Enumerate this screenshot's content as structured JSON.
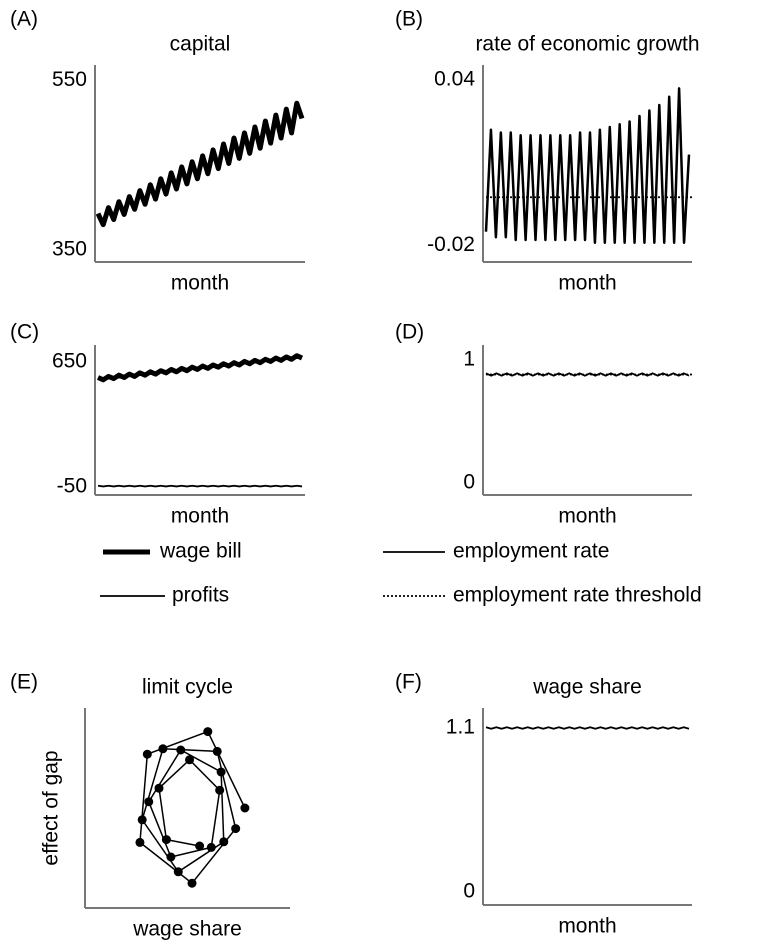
{
  "chart_data": [
    {
      "type": "line",
      "panel": "(A)",
      "title": "capital",
      "xlabel": "month",
      "ylim": [
        336,
        568
      ],
      "yticks": [
        350,
        550
      ],
      "series": [
        {
          "color": "#000000",
          "style": "thick",
          "values": [
            393,
            380,
            400,
            386,
            407,
            392,
            413,
            398,
            420,
            404,
            427,
            410,
            434,
            416,
            441,
            422,
            448,
            428,
            454,
            434,
            461,
            440,
            468,
            446,
            475,
            452,
            482,
            458,
            488,
            464,
            495,
            470,
            502,
            476,
            509,
            482,
            516,
            488,
            523,
            505
          ]
        }
      ]
    },
    {
      "type": "line",
      "panel": "(B)",
      "title": "rate of economic growth",
      "xlabel": "month",
      "ylim": [
        -0.026,
        0.0455
      ],
      "yticks": [
        -0.02,
        0.04
      ],
      "hlines": [
        {
          "value": -0.0025,
          "style": "dotted",
          "color": "#000000"
        }
      ],
      "series": [
        {
          "color": "#000000",
          "style": "medium",
          "values": [
            -0.015,
            0.022,
            -0.017,
            0.021,
            -0.017,
            0.021,
            -0.018,
            0.02,
            -0.018,
            0.02,
            -0.018,
            0.02,
            -0.018,
            0.02,
            -0.018,
            0.02,
            -0.018,
            0.02,
            -0.018,
            0.021,
            -0.018,
            0.021,
            -0.019,
            0.022,
            -0.019,
            0.023,
            -0.019,
            0.024,
            -0.019,
            0.025,
            -0.019,
            0.027,
            -0.019,
            0.029,
            -0.019,
            0.031,
            -0.019,
            0.034,
            -0.019,
            0.037,
            -0.019,
            0.013
          ]
        }
      ]
    },
    {
      "type": "line",
      "panel": "(C)",
      "xlabel": "month",
      "ylim": [
        -95,
        745
      ],
      "yticks": [
        -50,
        650
      ],
      "series": [
        {
          "color": "#000000",
          "style": "thick",
          "values": [
            563,
            550,
            569,
            557,
            576,
            563,
            582,
            569,
            589,
            576,
            595,
            582,
            601,
            589,
            608,
            595,
            614,
            601,
            621,
            608,
            627,
            614,
            633,
            621,
            640,
            627,
            646,
            633,
            653,
            640,
            659,
            646,
            665,
            653,
            672,
            659,
            678,
            665,
            685,
            672
          ]
        },
        {
          "color": "#000000",
          "style": "thin",
          "values": [
            -43,
            -47,
            -43,
            -47,
            -43,
            -47,
            -43,
            -47,
            -43,
            -47,
            -43,
            -47,
            -43,
            -47,
            -43,
            -47,
            -43,
            -47,
            -43,
            -47,
            -43,
            -47,
            -43,
            -47,
            -43,
            -47,
            -43,
            -47,
            -43,
            -47,
            -43,
            -47,
            -43,
            -47,
            -43,
            -47,
            -43,
            -47,
            -43,
            -47
          ]
        }
      ]
    },
    {
      "type": "line",
      "panel": "(D)",
      "xlabel": "month",
      "ylim": [
        -0.1,
        1.12
      ],
      "yticks": [
        0,
        1
      ],
      "hlines": [
        {
          "value": 0.88,
          "style": "dotted",
          "color": "#000000"
        }
      ],
      "series": [
        {
          "color": "#000000",
          "style": "thin",
          "values": [
            0.89,
            0.87,
            0.89,
            0.87,
            0.89,
            0.87,
            0.89,
            0.87,
            0.89,
            0.87,
            0.89,
            0.87,
            0.89,
            0.87,
            0.89,
            0.87,
            0.89,
            0.87,
            0.89,
            0.87,
            0.89,
            0.87,
            0.89,
            0.87,
            0.89,
            0.87,
            0.89,
            0.87,
            0.89,
            0.87,
            0.89,
            0.87,
            0.89,
            0.87,
            0.89,
            0.87,
            0.89,
            0.87,
            0.89,
            0.87
          ]
        }
      ]
    },
    {
      "type": "scatter",
      "panel": "(E)",
      "title": "limit cycle",
      "xlabel": "wage share",
      "ylabel": "effect of gap",
      "xlim": [
        0,
        1
      ],
      "ylim": [
        0,
        1
      ],
      "connect": true,
      "color": "#000000",
      "x": [
        0.78,
        0.599,
        0.304,
        0.268,
        0.522,
        0.735,
        0.645,
        0.38,
        0.279,
        0.455,
        0.677,
        0.664,
        0.467,
        0.311,
        0.419,
        0.616,
        0.657,
        0.51,
        0.361,
        0.397,
        0.559
      ],
      "y": [
        0.5,
        0.882,
        0.769,
        0.328,
        0.124,
        0.397,
        0.783,
        0.796,
        0.441,
        0.181,
        0.331,
        0.68,
        0.79,
        0.531,
        0.255,
        0.303,
        0.589,
        0.741,
        0.599,
        0.342,
        0.31
      ]
    },
    {
      "type": "line",
      "panel": "(F)",
      "title": "wage share",
      "xlabel": "month",
      "ylim": [
        -0.087,
        1.234
      ],
      "yticks": [
        0,
        1.1
      ],
      "series": [
        {
          "color": "#000000",
          "style": "thin",
          "values": [
            1.105,
            1.095,
            1.105,
            1.095,
            1.105,
            1.095,
            1.105,
            1.095,
            1.105,
            1.095,
            1.105,
            1.095,
            1.105,
            1.095,
            1.105,
            1.095,
            1.105,
            1.095,
            1.105,
            1.095,
            1.105,
            1.095,
            1.105,
            1.095,
            1.105,
            1.095,
            1.105,
            1.095,
            1.105,
            1.095,
            1.105,
            1.095,
            1.105,
            1.095,
            1.105,
            1.095,
            1.105,
            1.095,
            1.105,
            1.095
          ]
        }
      ]
    }
  ],
  "legend": [
    {
      "label": "wage bill",
      "style": "thick"
    },
    {
      "label": "profits",
      "style": "thin"
    },
    {
      "label": "employment rate",
      "style": "thin"
    },
    {
      "label": "employment rate threshold",
      "style": "dotted"
    }
  ]
}
